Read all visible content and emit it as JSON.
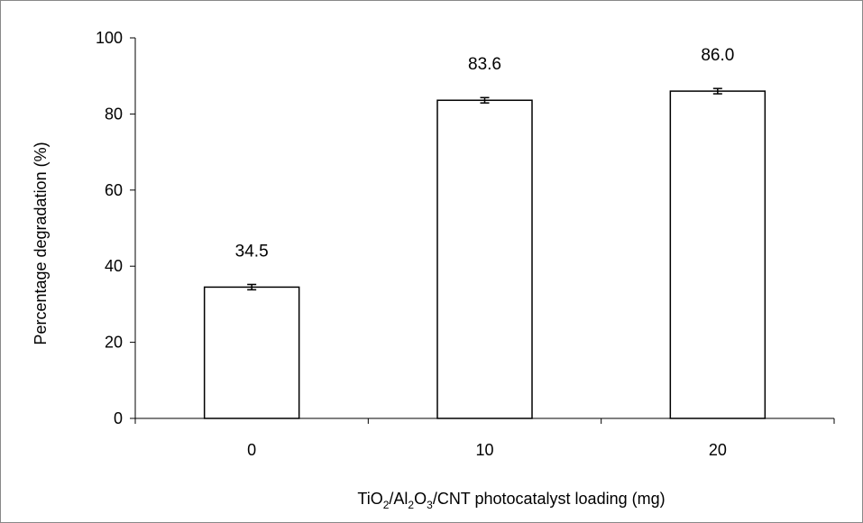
{
  "chart_data": {
    "type": "bar",
    "categories": [
      "0",
      "10",
      "20"
    ],
    "values": [
      34.5,
      83.6,
      86.0
    ],
    "value_labels": [
      "34.5",
      "83.6",
      "86.0"
    ],
    "error": [
      0.7,
      0.7,
      0.7
    ],
    "ylim": [
      0,
      100
    ],
    "yticks": [
      0,
      20,
      40,
      60,
      80,
      100
    ],
    "ylabel": "Percentage degradation (%)",
    "xlabel": {
      "parts": [
        "TiO",
        "2",
        "/Al",
        "2",
        "O",
        "3",
        "/CNT photocatalyst loading (mg)"
      ]
    },
    "grid": false,
    "legend": "none",
    "colors": {
      "bar_fill": "#ffffff",
      "bar_stroke": "#000000",
      "axis": "#000000",
      "frame": "#888888"
    }
  }
}
